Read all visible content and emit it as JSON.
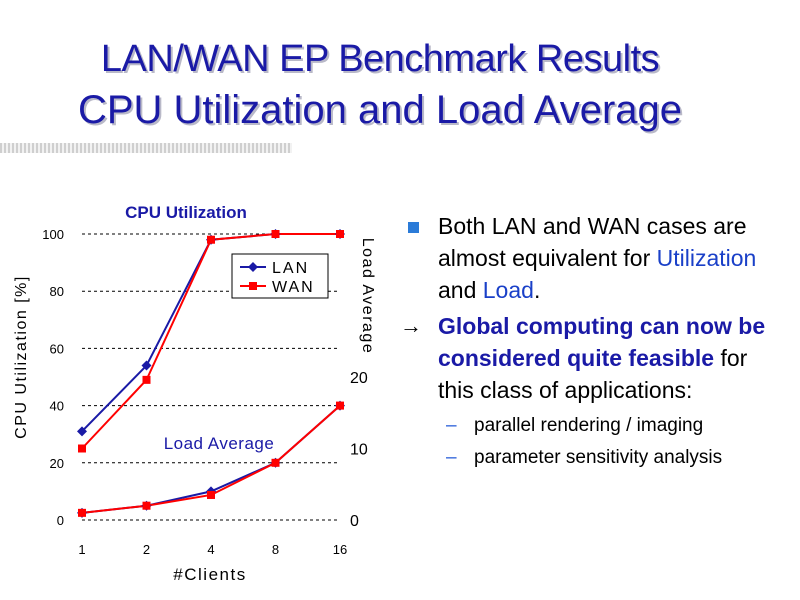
{
  "slide": {
    "title_line1": "LAN/WAN EP Benchmark Results",
    "title_line2": "CPU Utilization and Load Average"
  },
  "bullets": {
    "b1_part1": "Both LAN and WAN cases are almost equivalent for ",
    "b1_util": "Utilization",
    "b1_and": " and ",
    "b1_load": "Load",
    "b1_end": ".",
    "b2_arrow": "→",
    "b2_bold": "Global computing can now be considered quite feasible",
    "b2_rest": " for this class of applications:",
    "sub1": "parallel rendering / imaging",
    "sub2": "parameter sensitivity analysis",
    "dash": "–"
  },
  "chart_data": {
    "type": "line",
    "title_top": "CPU Utilization",
    "title_bottom": "Load Average",
    "xlabel": "#Clients",
    "ylabel_left": "CPU Utilization [%]",
    "ylabel_right": "Load Average",
    "categories": [
      "1",
      "2",
      "4",
      "8",
      "16"
    ],
    "y_left": {
      "lim": [
        0,
        100
      ],
      "ticks": [
        0,
        20,
        40,
        60,
        80,
        100
      ]
    },
    "y_right": {
      "lim": [
        0,
        40
      ],
      "ticks": [
        0,
        10,
        20
      ]
    },
    "grid": true,
    "legend_position": "top-right",
    "colors": {
      "LAN": "#1a1aa6",
      "WAN": "#ff0000"
    },
    "series": [
      {
        "name": "LAN",
        "marker": "diamond",
        "axis": "left",
        "values": [
          31,
          54,
          98,
          100,
          100
        ]
      },
      {
        "name": "WAN",
        "marker": "square",
        "axis": "left",
        "values": [
          25,
          49,
          98,
          100,
          100
        ]
      },
      {
        "name": "LAN",
        "marker": "diamond",
        "axis": "right",
        "values": [
          1.0,
          2.0,
          4.0,
          8.0,
          16.0
        ]
      },
      {
        "name": "WAN",
        "marker": "square",
        "axis": "right",
        "values": [
          1.0,
          2.0,
          3.5,
          8.0,
          16.0
        ]
      }
    ]
  }
}
